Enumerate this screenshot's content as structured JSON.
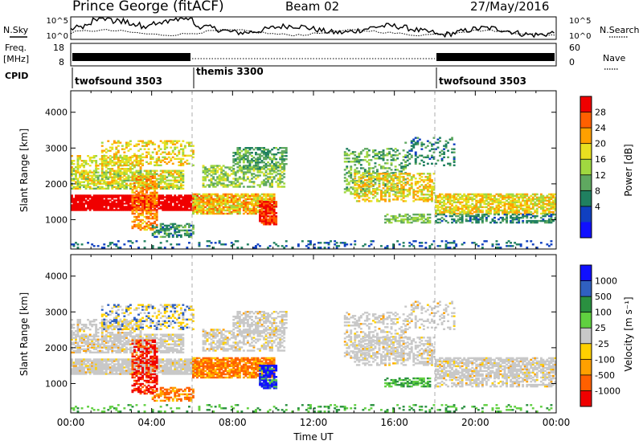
{
  "header": {
    "station": "Prince George (fitACF)",
    "beam": "Beam 02",
    "date": "27/May/2016"
  },
  "labels": {
    "nsky": "N.Sky",
    "nsearch": "N.Search",
    "freq": "Freq.",
    "freq_unit": "[MHz]",
    "nave": "Nave",
    "cpid": "CPID"
  },
  "noise_panel": {
    "left_ticks": [
      "10^5",
      "10^0"
    ],
    "right_ticks": [
      "10^5",
      "10^0"
    ]
  },
  "freq_panel": {
    "left_ticks": [
      "18",
      "8"
    ],
    "right_ticks": [
      "60",
      "0"
    ]
  },
  "cpid_segments": [
    {
      "label": "twofsound 3503",
      "start_hr": 0,
      "end_hr": 6
    },
    {
      "label": "themis 3300",
      "start_hr": 6,
      "end_hr": 18
    },
    {
      "label": "twofsound 3503",
      "start_hr": 18,
      "end_hr": 24
    }
  ],
  "chart_data": [
    {
      "type": "heatmap",
      "panel": "power",
      "ylabel": "Slant Range [km]",
      "xlim": [
        0,
        24
      ],
      "ylim": [
        180,
        4600
      ],
      "y_ticks": [
        1000,
        2000,
        3000,
        4000
      ],
      "colorbar": {
        "label": "Power [dB]",
        "ticks": [
          "28",
          "24",
          "20",
          "16",
          "12",
          "8",
          "4"
        ],
        "colors": [
          "#f00000",
          "#ff6000",
          "#ffa000",
          "#e8e020",
          "#a0d840",
          "#5fa860",
          "#208060",
          "#1040c0",
          "#1010ff"
        ]
      }
    },
    {
      "type": "heatmap",
      "panel": "velocity",
      "ylabel": "Slant Range [km]",
      "xlabel": "Time UT",
      "xlim": [
        0,
        24
      ],
      "ylim": [
        180,
        4600
      ],
      "y_ticks": [
        1000,
        2000,
        3000,
        4000
      ],
      "x_ticks": [
        "00:00",
        "04:00",
        "08:00",
        "12:00",
        "16:00",
        "20:00",
        "00:00"
      ],
      "colorbar": {
        "label": "Velocity [m s⁻¹]",
        "ticks": [
          "1000",
          "500",
          "100",
          "25",
          "-25",
          "-100",
          "-500",
          "-1000"
        ],
        "colors": [
          "#1010ff",
          "#3060c0",
          "#2a9040",
          "#60d040",
          "#c8c8c8",
          "#ffd000",
          "#ffa000",
          "#ff6000",
          "#f00000"
        ]
      }
    }
  ]
}
